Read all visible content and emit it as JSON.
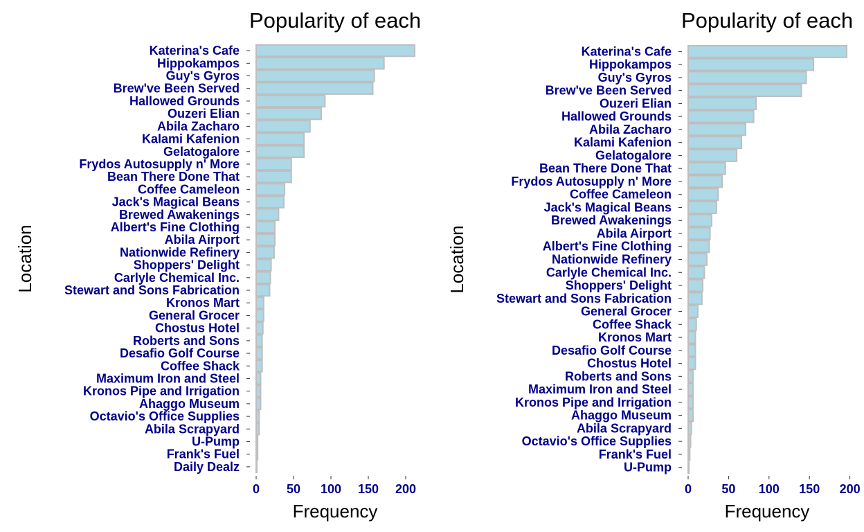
{
  "colors": {
    "bar_fill": "#add8e6",
    "bar_stroke": "#bebebe",
    "tick_label": "#00008b",
    "title": "#000000",
    "axis_title": "#000000",
    "tick_mark": "#333333"
  },
  "chart_data": [
    {
      "type": "bar",
      "orientation": "horizontal",
      "title": "Popularity of each",
      "xlabel": "Frequency",
      "ylabel": "Location",
      "xlim": [
        0,
        215
      ],
      "xticks": [
        0,
        50,
        100,
        150,
        200
      ],
      "grid": false,
      "categories": [
        "Katerina's Cafe",
        "Hippokampos",
        "Guy's Gyros",
        "Brew've Been Served",
        "Hallowed Grounds",
        "Ouzeri Elian",
        "Abila Zacharo",
        "Kalami Kafenion",
        "Gelatogalore",
        "Frydos Autosupply n' More",
        "Bean There Done That",
        "Coffee Cameleon",
        "Jack's Magical Beans",
        "Brewed Awakenings",
        "Albert's Fine Clothing",
        "Abila Airport",
        "Nationwide Refinery",
        "Shoppers' Delight",
        "Carlyle Chemical Inc.",
        "Stewart and Sons Fabrication",
        "Kronos Mart",
        "General Grocer",
        "Chostus Hotel",
        "Roberts and Sons",
        "Desafio Golf Course",
        "Coffee Shack",
        "Maximum Iron and Steel",
        "Kronos Pipe and Irrigation",
        "Ahaggo Museum",
        "Octavio's Office Supplies",
        "Abila Scrapyard",
        "U-Pump",
        "Frank's Fuel",
        "Daily Dealz"
      ],
      "values": [
        212,
        171,
        158,
        156,
        92,
        87,
        72,
        64,
        64,
        47,
        47,
        38,
        37,
        30,
        25,
        25,
        24,
        20,
        19,
        18,
        10,
        10,
        9,
        8,
        8,
        8,
        6,
        6,
        6,
        4,
        4,
        2,
        2,
        1
      ]
    },
    {
      "type": "bar",
      "orientation": "horizontal",
      "title": "Popularity of each",
      "xlabel": "Frequency",
      "ylabel": "Location",
      "xlim": [
        0,
        200
      ],
      "xticks": [
        0,
        50,
        100,
        150,
        200
      ],
      "grid": false,
      "categories": [
        "Katerina's Cafe",
        "Hippokampos",
        "Guy's Gyros",
        "Brew've Been Served",
        "Ouzeri Elian",
        "Hallowed Grounds",
        "Abila Zacharo",
        "Kalami Kafenion",
        "Gelatogalore",
        "Bean There Done That",
        "Frydos Autosupply n' More",
        "Coffee Cameleon",
        "Jack's Magical Beans",
        "Brewed Awakenings",
        "Abila Airport",
        "Albert's Fine Clothing",
        "Nationwide Refinery",
        "Carlyle Chemical Inc.",
        "Shoppers' Delight",
        "Stewart and Sons Fabrication",
        "General Grocer",
        "Coffee Shack",
        "Kronos Mart",
        "Desafio Golf Course",
        "Chostus Hotel",
        "Roberts and Sons",
        "Maximum Iron and Steel",
        "Kronos Pipe and Irrigation",
        "Ahaggo Museum",
        "Abila Scrapyard",
        "Octavio's Office Supplies",
        "Frank's Fuel",
        "U-Pump"
      ],
      "values": [
        196,
        155,
        146,
        140,
        84,
        81,
        71,
        66,
        60,
        46,
        42,
        37,
        35,
        29,
        27,
        26,
        23,
        20,
        18,
        17,
        12,
        10,
        9,
        9,
        9,
        6,
        6,
        6,
        6,
        4,
        3,
        2,
        1
      ]
    }
  ]
}
